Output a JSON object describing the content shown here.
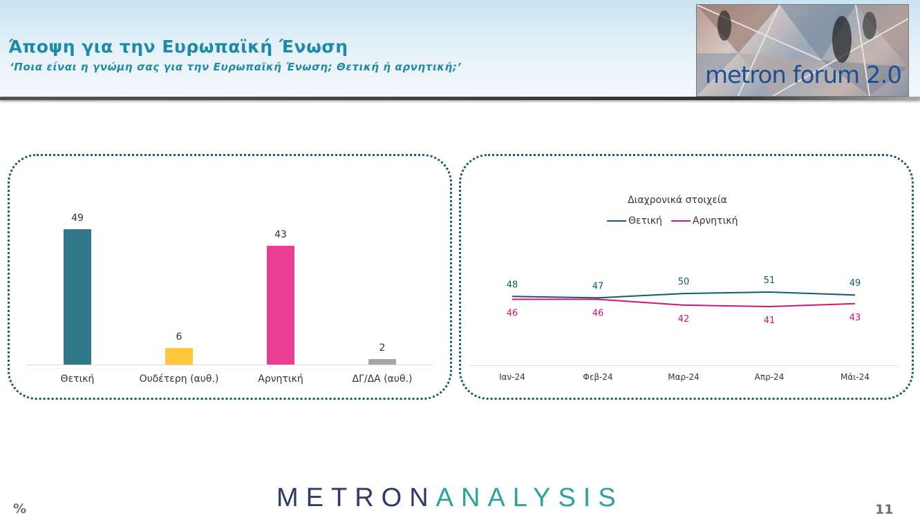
{
  "header": {
    "title": "Άποψη για την Ευρωπαϊκή Ένωση",
    "subtitle": "‘Ποια είναι η γνώμη σας για την Ευρωπαϊκή Ένωση; Θετική ή αρνητική;’",
    "logo_text": "metron forum 2.0"
  },
  "chart_data": [
    {
      "type": "bar",
      "categories": [
        "Θετική",
        "Ουδέτερη (αυθ.)",
        "Αρνητική",
        "ΔΓ/ΔΑ (αυθ.)"
      ],
      "values": [
        49,
        6,
        43,
        2
      ],
      "colors": [
        "#31788a",
        "#ffc83d",
        "#ea3e93",
        "#a6a6a6"
      ],
      "ylim": [
        0,
        49
      ]
    },
    {
      "type": "line",
      "title": "Διαχρονικά στοιχεία",
      "x": [
        "Ιαν-24",
        "Φεβ-24",
        "Μαρ-24",
        "Απρ-24",
        "Μάι-24"
      ],
      "series": [
        {
          "name": "Θετική",
          "values": [
            48,
            47,
            50,
            51,
            49
          ],
          "color": "#0f5a6b"
        },
        {
          "name": "Αρνητική",
          "values": [
            46,
            46,
            42,
            41,
            43
          ],
          "color": "#d4127a"
        }
      ]
    }
  ],
  "footer": {
    "brand_part1": "METRON",
    "brand_part2": "ANALYSIS",
    "percent_symbol": "%",
    "page_number": "11"
  }
}
